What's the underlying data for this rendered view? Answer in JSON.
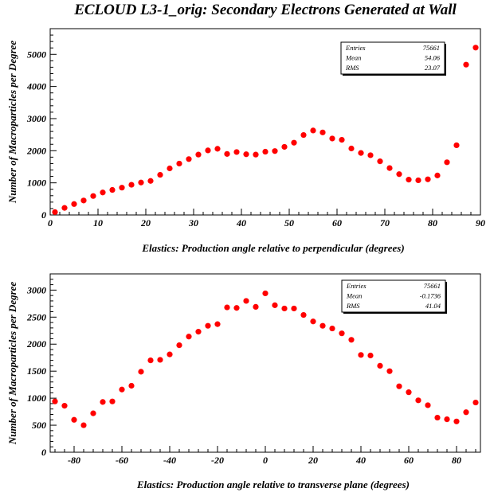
{
  "title": "ECLOUD L3-1_orig: Secondary Electrons Generated at Wall",
  "marker_color": "#ff0000",
  "chart_data": [
    {
      "type": "scatter",
      "xlabel": "Elastics: Production angle relative to perpendicular (degrees)",
      "ylabel": "Number of Macroparticles per Degree",
      "xlim": [
        0,
        90
      ],
      "ylim": [
        0,
        5800
      ],
      "xticks": [
        0,
        10,
        20,
        30,
        40,
        50,
        60,
        70,
        80,
        90
      ],
      "yticks": [
        0,
        1000,
        2000,
        3000,
        4000,
        5000
      ],
      "stats": [
        {
          "label": "Entries",
          "value": "75661"
        },
        {
          "label": "Mean",
          "value": "54.06"
        },
        {
          "label": "RMS",
          "value": "23.07"
        }
      ],
      "x": [
        1,
        3,
        5,
        7,
        9,
        11,
        13,
        15,
        17,
        19,
        21,
        23,
        25,
        27,
        29,
        31,
        33,
        35,
        37,
        39,
        41,
        43,
        45,
        47,
        49,
        51,
        53,
        55,
        57,
        59,
        61,
        63,
        65,
        67,
        69,
        71,
        73,
        75,
        77,
        79,
        81,
        83,
        85,
        87,
        89
      ],
      "y": [
        90,
        220,
        340,
        450,
        590,
        700,
        780,
        850,
        940,
        1010,
        1060,
        1250,
        1450,
        1600,
        1740,
        1880,
        2010,
        2060,
        1900,
        1960,
        1890,
        1880,
        1970,
        1990,
        2120,
        2250,
        2490,
        2630,
        2570,
        2380,
        2340,
        2070,
        1930,
        1860,
        1670,
        1460,
        1270,
        1100,
        1080,
        1110,
        1230,
        1640,
        2170,
        4680,
        5210
      ]
    },
    {
      "type": "scatter",
      "xlabel": "Elastics: Production angle relative to transverse plane (degrees)",
      "ylabel": "Number of Macroparticles per Degree",
      "xlim": [
        -90,
        90
      ],
      "ylim": [
        0,
        3300
      ],
      "xticks": [
        -80,
        -60,
        -40,
        -20,
        0,
        20,
        40,
        60,
        80
      ],
      "yticks": [
        0,
        500,
        1000,
        1500,
        2000,
        2500,
        3000
      ],
      "stats": [
        {
          "label": "Entries",
          "value": "75661"
        },
        {
          "label": "Mean",
          "value": "-0.1736"
        },
        {
          "label": "RMS",
          "value": "41.04"
        }
      ],
      "x": [
        -88,
        -84,
        -80,
        -76,
        -72,
        -68,
        -64,
        -60,
        -56,
        -52,
        -48,
        -44,
        -40,
        -36,
        -32,
        -28,
        -24,
        -20,
        -16,
        -12,
        -8,
        -4,
        0,
        4,
        8,
        12,
        16,
        20,
        24,
        28,
        32,
        36,
        40,
        44,
        48,
        52,
        56,
        60,
        64,
        68,
        72,
        76,
        80,
        84,
        88
      ],
      "y": [
        940,
        860,
        600,
        500,
        720,
        930,
        940,
        1160,
        1230,
        1490,
        1700,
        1710,
        1810,
        1980,
        2140,
        2230,
        2340,
        2370,
        2680,
        2670,
        2800,
        2690,
        2940,
        2720,
        2660,
        2660,
        2540,
        2420,
        2340,
        2290,
        2200,
        2080,
        1800,
        1790,
        1600,
        1500,
        1220,
        1110,
        960,
        870,
        640,
        610,
        570,
        740,
        920
      ]
    }
  ]
}
